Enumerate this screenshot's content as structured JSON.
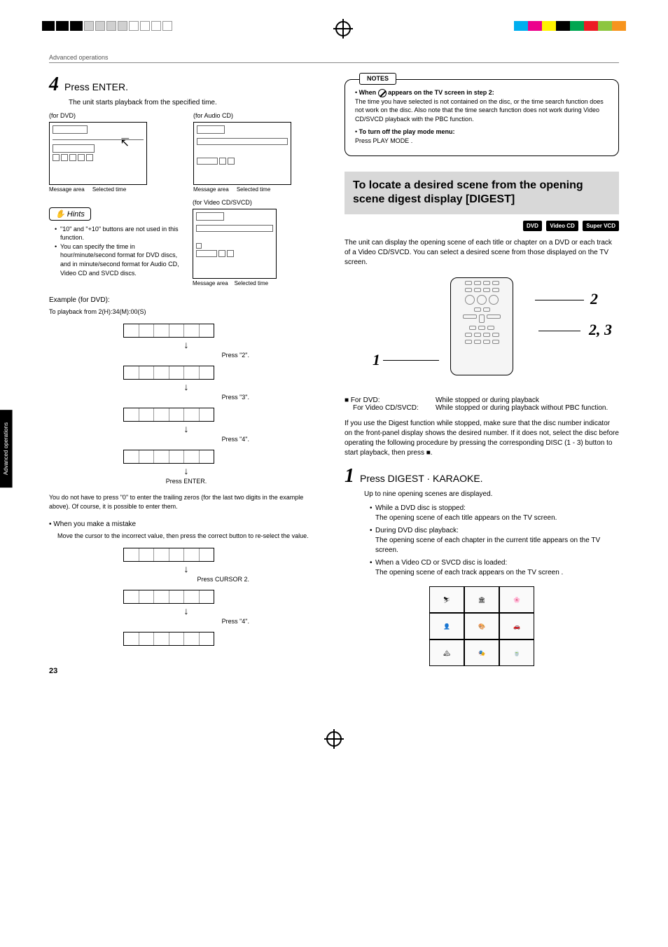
{
  "header": {
    "breadcrumb": "Advanced operations"
  },
  "registration_colors": [
    "#00aeef",
    "#ec008c",
    "#fff200",
    "#000000",
    "#00a651",
    "#ed1c24",
    "#8dc63f",
    "#f7941d"
  ],
  "left": {
    "step4": {
      "num": "4",
      "title": "Press ENTER.",
      "body": "The unit starts playback from the specified time."
    },
    "diag": {
      "dvd_label": "(for DVD)",
      "audio_label": "(for Audio CD)",
      "video_label": "(for Video CD/SVCD)",
      "msg_area": "Message area",
      "sel_time": "Selected time"
    },
    "hints": {
      "badge": "Hints",
      "items": [
        "\"10\" and \"+10\" buttons are not used in this function.",
        "You can specify the time in hour/minute/second format for DVD discs, and in minute/second format for Audio CD, Video CD and SVCD discs."
      ]
    },
    "example": {
      "heading": "Example (for DVD):",
      "sub": "To playback from 2(H):34(M):00(S)",
      "steps": [
        "Press \"2\".",
        "Press \"3\".",
        "Press \"4\".",
        "Press ENTER."
      ]
    },
    "trailing_note": "You do not have to press \"0\" to enter the trailing zeros (for the last two digits in the example above). Of course, it is possible to enter them.",
    "mistake": {
      "heading": "• When you make a mistake",
      "body": "Move the cursor to the incorrect value, then press the correct button to re-select the value.",
      "steps": [
        "Press CURSOR 2.",
        "Press \"4\"."
      ]
    }
  },
  "right": {
    "notes": {
      "tab": "NOTES",
      "items": [
        {
          "bold": "When     appears on the TV screen in step 2:",
          "body": "The time you have selected is not contained on the disc, or the time search function does not work on the disc. Also note that the time search function does not work during Video CD/SVCD playback with the PBC function."
        },
        {
          "bold": "To turn off the play mode menu:",
          "body": "Press PLAY MODE ."
        }
      ]
    },
    "section": {
      "title": "To locate a desired scene from the opening scene digest display [DIGEST]",
      "badges": [
        "DVD",
        "Video CD",
        "Super VCD"
      ]
    },
    "intro": "The unit can display the opening scene of each title or chapter on a DVD or each track of a Video CD/SVCD. You can select a desired scene from those displayed on the TV screen.",
    "callouts": {
      "c1": "1",
      "c2": "2",
      "c3": "2, 3"
    },
    "modes": {
      "dvd_label": "■ For DVD:",
      "dvd_val": "While stopped or during playback",
      "vcd_label": "For Video CD/SVCD:",
      "vcd_val": "While stopped or during playback without PBC function."
    },
    "digest_note": "If you use the Digest function while stopped, make sure that the disc number indicator on the front-panel display shows the desired number. If it does not, select the disc before operating the following procedure by pressing the corresponding DISC (1 - 3) button to start playback, then press ■.",
    "step1": {
      "num": "1",
      "title": "Press DIGEST · KARAOKE.",
      "body": "Up to nine opening scenes are displayed.",
      "bullets": [
        {
          "h": "While a DVD disc is stopped:",
          "b": "The opening scene of each title appears on the TV screen."
        },
        {
          "h": "During DVD disc playback:",
          "b": "The opening scene of each chapter in the current title appears on the TV screen."
        },
        {
          "h": "When a Video CD or SVCD disc is loaded:",
          "b": "The opening scene of each track appears on the TV screen ."
        }
      ]
    }
  },
  "side_tab": "Advanced operations",
  "page_number": "23"
}
